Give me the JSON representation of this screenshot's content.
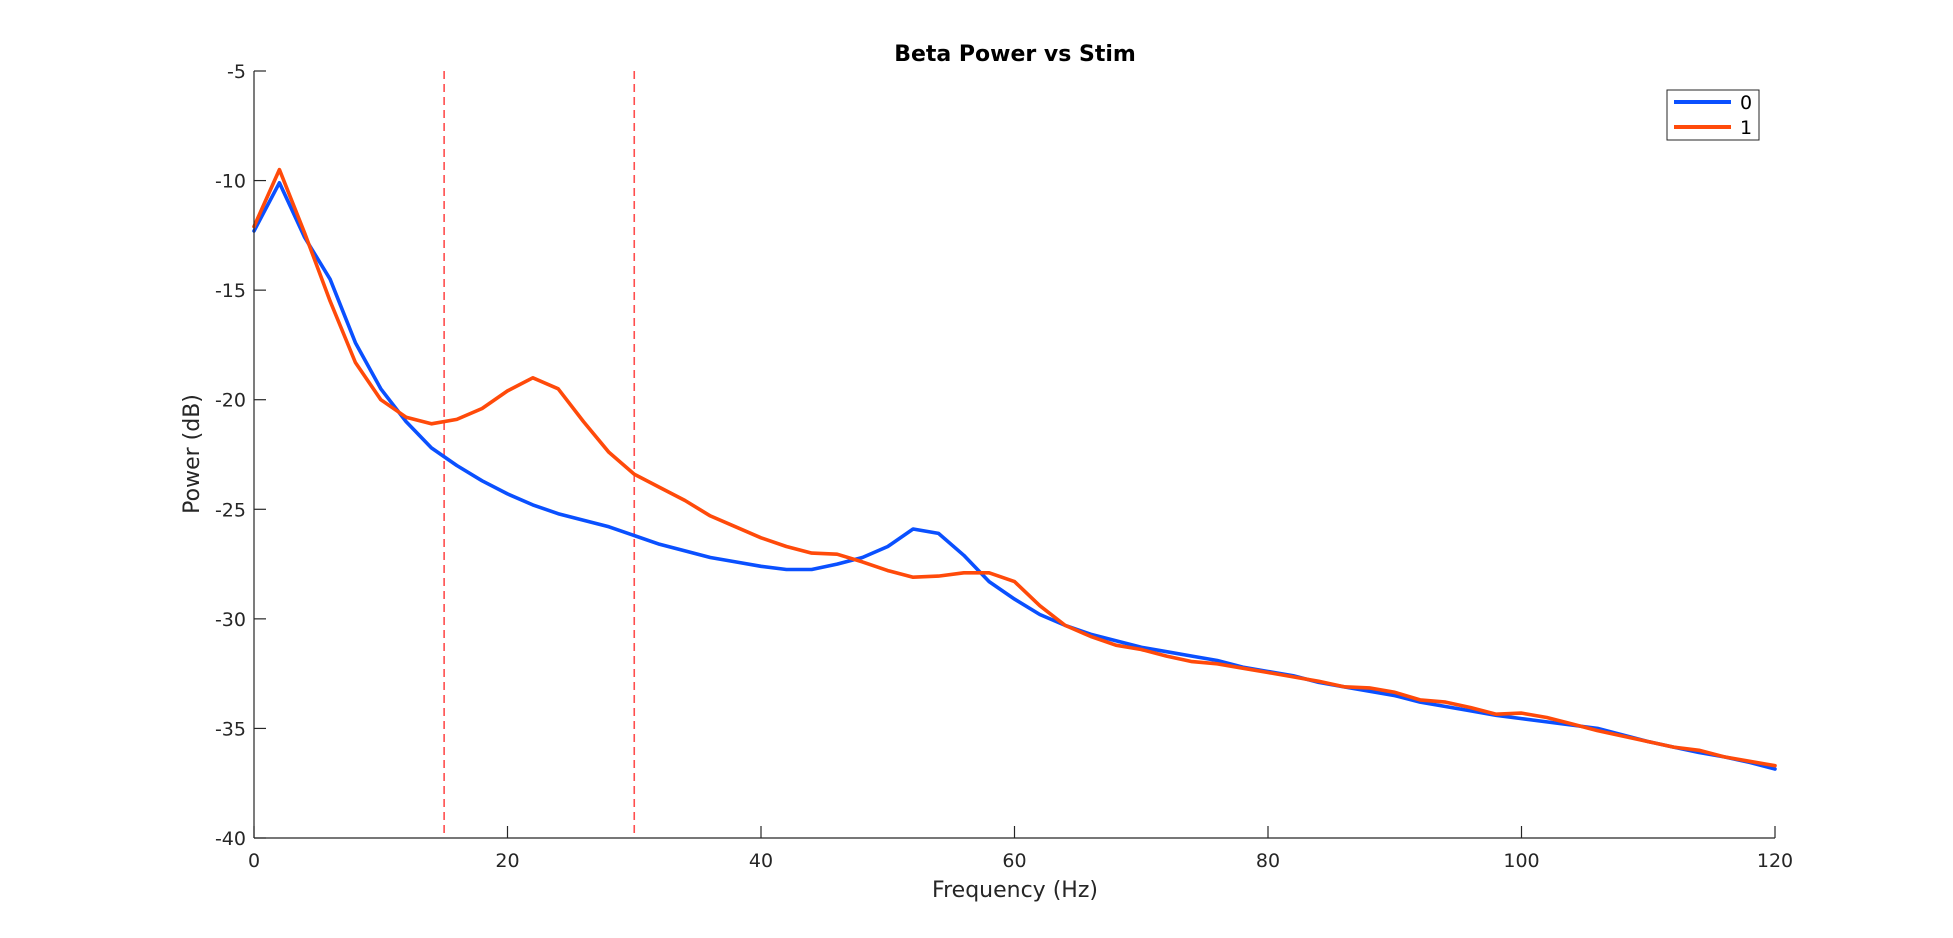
{
  "chart_data": {
    "type": "line",
    "title": "Beta Power vs Stim",
    "xlabel": "Frequency (Hz)",
    "ylabel": "Power (dB)",
    "xlim": [
      0,
      120
    ],
    "ylim": [
      -40,
      -5
    ],
    "xticks": [
      0,
      20,
      40,
      60,
      80,
      100,
      120
    ],
    "yticks": [
      -40,
      -35,
      -30,
      -25,
      -20,
      -15,
      -10,
      -5
    ],
    "xtick_labels": [
      "0",
      "20",
      "40",
      "60",
      "80",
      "100",
      "120"
    ],
    "ytick_labels": [
      "-40",
      "-35",
      "-30",
      "-25",
      "-20",
      "-15",
      "-10",
      "-5"
    ],
    "grid": false,
    "legend_position": "top-right",
    "vlines": [
      {
        "x": 15,
        "color": "#ff4d4d",
        "style": "dashed"
      },
      {
        "x": 30,
        "color": "#ff4d4d",
        "style": "dashed"
      }
    ],
    "x": [
      0,
      2,
      4,
      6,
      8,
      10,
      12,
      14,
      16,
      18,
      20,
      22,
      24,
      26,
      28,
      30,
      32,
      34,
      36,
      38,
      40,
      42,
      44,
      46,
      48,
      50,
      52,
      54,
      56,
      58,
      60,
      62,
      64,
      66,
      68,
      70,
      72,
      74,
      76,
      78,
      80,
      82,
      84,
      86,
      88,
      90,
      92,
      94,
      96,
      98,
      100,
      102,
      104,
      106,
      108,
      110,
      112,
      114,
      116,
      118,
      120
    ],
    "series": [
      {
        "name": "0",
        "color": "#0a50ff",
        "values": [
          -12.3,
          -10.1,
          -12.6,
          -14.5,
          -17.4,
          -19.5,
          -21.0,
          -22.2,
          -23.0,
          -23.7,
          -24.3,
          -24.8,
          -25.2,
          -25.5,
          -25.8,
          -26.2,
          -26.6,
          -26.9,
          -27.2,
          -27.4,
          -27.6,
          -27.75,
          -27.75,
          -27.5,
          -27.2,
          -26.7,
          -25.9,
          -26.1,
          -27.1,
          -28.3,
          -29.1,
          -29.8,
          -30.3,
          -30.7,
          -31.0,
          -31.3,
          -31.5,
          -31.7,
          -31.9,
          -32.2,
          -32.4,
          -32.6,
          -32.9,
          -33.1,
          -33.3,
          -33.5,
          -33.8,
          -34.0,
          -34.2,
          -34.4,
          -34.55,
          -34.7,
          -34.85,
          -35.0,
          -35.3,
          -35.6,
          -35.85,
          -36.1,
          -36.3,
          -36.55,
          -36.85
        ]
      },
      {
        "name": "1",
        "color": "#ff4a0a",
        "values": [
          -12.1,
          -9.5,
          -12.4,
          -15.5,
          -18.3,
          -20.0,
          -20.8,
          -21.1,
          -20.9,
          -20.4,
          -19.6,
          -19.0,
          -19.5,
          -21.0,
          -22.4,
          -23.4,
          -24.0,
          -24.6,
          -25.3,
          -25.8,
          -26.3,
          -26.7,
          -27.0,
          -27.05,
          -27.4,
          -27.8,
          -28.1,
          -28.05,
          -27.9,
          -27.9,
          -28.3,
          -29.4,
          -30.3,
          -30.8,
          -31.2,
          -31.4,
          -31.7,
          -31.95,
          -32.05,
          -32.25,
          -32.45,
          -32.65,
          -32.85,
          -33.1,
          -33.15,
          -33.35,
          -33.7,
          -33.8,
          -34.05,
          -34.35,
          -34.3,
          -34.5,
          -34.8,
          -35.1,
          -35.35,
          -35.6,
          -35.85,
          -36.0,
          -36.3,
          -36.5,
          -36.7
        ]
      }
    ]
  }
}
